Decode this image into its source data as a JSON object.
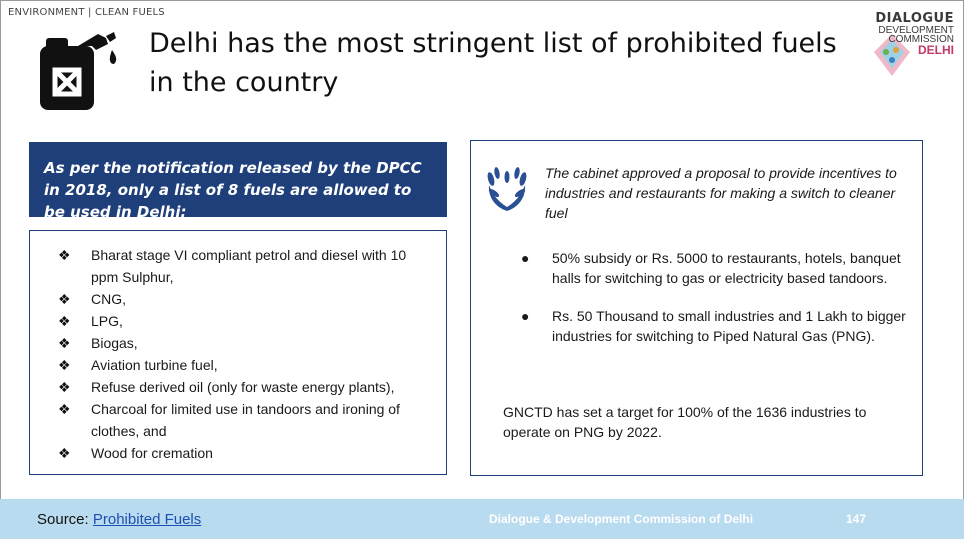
{
  "breadcrumb": "ENVIRONMENT | CLEAN FUELS",
  "title": "Delhi has the most stringent list of prohibited fuels in the country",
  "logo": {
    "line1": "DIALOGUE",
    "line2": "DEVELOPMENT",
    "line3": "COMMISSION",
    "line4": "DELHI"
  },
  "notification": {
    "text_before": "As per the notification released by the DPCC in ",
    "year": "2018",
    "text_after": ", only a list of 8 fuels are allowed to be used in Delhi:"
  },
  "allowed_fuels": [
    "Bharat stage VI compliant petrol and diesel with 10 ppm Sulphur,",
    "CNG,",
    "LPG,",
    "Biogas,",
    "Aviation turbine fuel,",
    "Refuse derived oil (only for waste energy plants),",
    "Charcoal for limited use in tandoors and ironing of clothes, and",
    "Wood for cremation"
  ],
  "bullet_glyph": "❖",
  "cabinet": {
    "intro": "The cabinet approved a proposal to provide incentives to industries and restaurants for making a switch to cleaner fuel",
    "incentives": [
      "50% subsidy or Rs. 5000 to restaurants, hotels, banquet halls for switching to gas or electricity based tandoors.",
      "Rs. 50 Thousand to small industries and 1 Lakh to bigger industries for switching to Piped Natural Gas (PNG)."
    ],
    "dot_glyph": "●",
    "target": "GNCTD has set a target for 100% of the 1636 industries to operate on PNG by 2022."
  },
  "footer": {
    "source_label": "Source: ",
    "source_link": "Prohibited Fuels",
    "org": "Dialogue & Development Commission of Delhi",
    "page": "147"
  },
  "colors": {
    "accent_blue": "#1f3f7a",
    "footer_bg": "#b9dbef",
    "link": "#1d4fb0"
  }
}
